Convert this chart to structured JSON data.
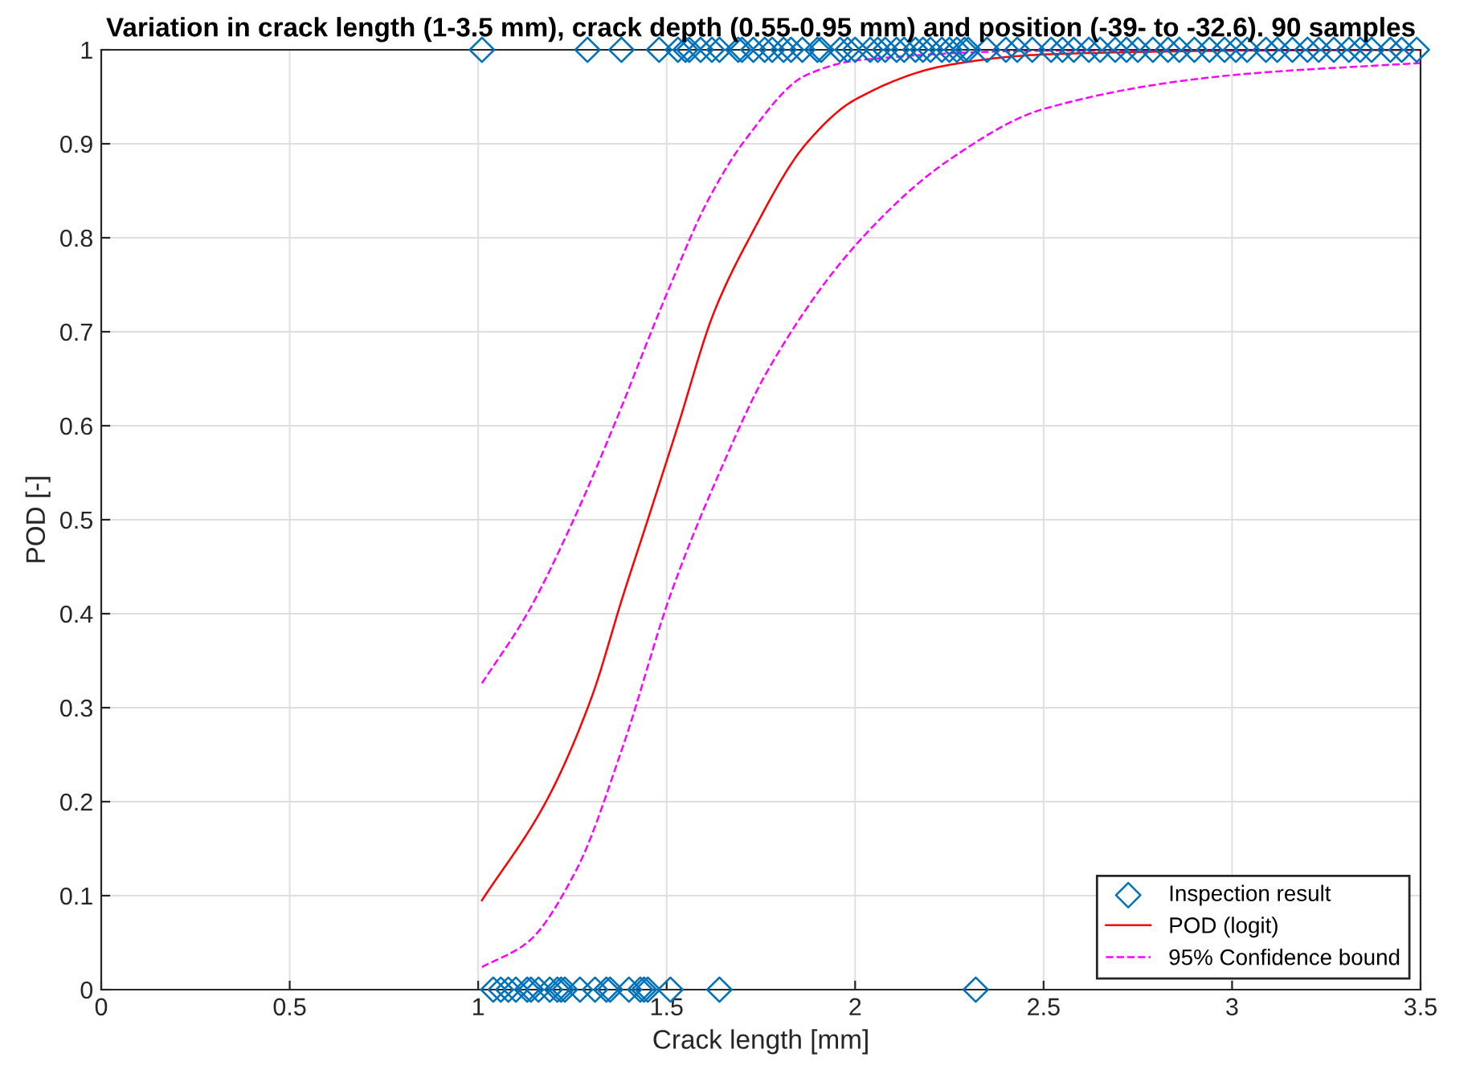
{
  "chart_data": {
    "type": "line",
    "title": "Variation in crack length (1-3.5 mm), crack depth (0.55-0.95 mm) and position (-39- to -32.6). 90 samples",
    "xlabel": "Crack length [mm]",
    "ylabel": "POD [-]",
    "xlim": [
      0,
      3.5
    ],
    "xticks": [
      0,
      0.5,
      1,
      1.5,
      2,
      2.5,
      3,
      3.5
    ],
    "ylim": [
      0,
      1
    ],
    "yticks": [
      0,
      0.1,
      0.2,
      0.3,
      0.4,
      0.5,
      0.6,
      0.7,
      0.8,
      0.9,
      1
    ],
    "grid": true,
    "legend": "bottom right",
    "series": [
      {
        "name": "Inspection result",
        "type": "scatter",
        "marker": "diamond",
        "color": "#0072bd",
        "x": [
          1.04,
          1.06,
          1.08,
          1.1,
          1.13,
          1.14,
          1.16,
          1.19,
          1.21,
          1.22,
          1.23,
          1.27,
          1.31,
          1.34,
          1.35,
          1.4,
          1.43,
          1.44,
          1.45,
          1.51,
          1.64,
          2.32,
          1.01,
          1.29,
          1.38,
          1.48,
          1.53,
          1.55,
          1.56,
          1.59,
          1.62,
          1.64,
          1.69,
          1.7,
          1.73,
          1.76,
          1.78,
          1.81,
          1.83,
          1.86,
          1.9,
          1.91,
          1.96,
          1.98,
          2.0,
          2.04,
          2.06,
          2.08,
          2.11,
          2.13,
          2.16,
          2.18,
          2.2,
          2.23,
          2.25,
          2.27,
          2.29,
          2.3,
          2.35,
          2.4,
          2.43,
          2.47,
          2.52,
          2.55,
          2.58,
          2.62,
          2.65,
          2.69,
          2.72,
          2.75,
          2.79,
          2.83,
          2.86,
          2.9,
          2.94,
          2.98,
          3.01,
          3.04,
          3.09,
          3.12,
          3.16,
          3.2,
          3.23,
          3.27,
          3.31,
          3.34,
          3.37,
          3.42,
          3.45,
          3.49
        ],
        "values": [
          0,
          0,
          0,
          0,
          0,
          0,
          0,
          0,
          0,
          0,
          0,
          0,
          0,
          0,
          0,
          0,
          0,
          0,
          0,
          0,
          0,
          0,
          1,
          1,
          1,
          1,
          1,
          1,
          1,
          1,
          1,
          1,
          1,
          1,
          1,
          1,
          1,
          1,
          1,
          1,
          1,
          1,
          1,
          1,
          1,
          1,
          1,
          1,
          1,
          1,
          1,
          1,
          1,
          1,
          1,
          1,
          1,
          1,
          1,
          1,
          1,
          1,
          1,
          1,
          1,
          1,
          1,
          1,
          1,
          1,
          1,
          1,
          1,
          1,
          1,
          1,
          1,
          1,
          1,
          1,
          1,
          1,
          1,
          1,
          1,
          1,
          1,
          1,
          1,
          1
        ]
      },
      {
        "name": "POD (logit)",
        "line_style": "solid",
        "color": "#ff0000",
        "x": [
          1.01,
          1.18,
          1.3,
          1.385,
          1.45,
          1.53,
          1.625,
          1.72,
          1.87,
          2.0,
          2.25,
          2.5,
          3.0,
          3.5
        ],
        "values": [
          0.095,
          0.2,
          0.31,
          0.42,
          0.5,
          0.6,
          0.72,
          0.8,
          0.9,
          0.947,
          0.984,
          0.995,
          0.999,
          1.0
        ]
      },
      {
        "name": "95% Confidence bound",
        "line_style": "dashed",
        "color": "#ff00ff",
        "x": [
          1.01,
          1.13,
          1.26,
          1.36,
          1.5,
          1.61,
          1.71,
          1.87,
          2.01,
          2.5,
          3.5
        ],
        "values": [
          0.326,
          0.4,
          0.506,
          0.6,
          0.74,
          0.84,
          0.905,
          0.973,
          0.989,
          0.999,
          1.0
        ]
      },
      {
        "line_style": "dashed",
        "color": "#ff00ff",
        "x": [
          1.01,
          1.13,
          1.26,
          1.385,
          1.51,
          1.64,
          1.77,
          2.01,
          2.25,
          2.5,
          3.0,
          3.5
        ],
        "values": [
          0.024,
          0.05,
          0.127,
          0.26,
          0.42,
          0.55,
          0.66,
          0.796,
          0.883,
          0.937,
          0.973,
          0.986
        ]
      }
    ]
  }
}
